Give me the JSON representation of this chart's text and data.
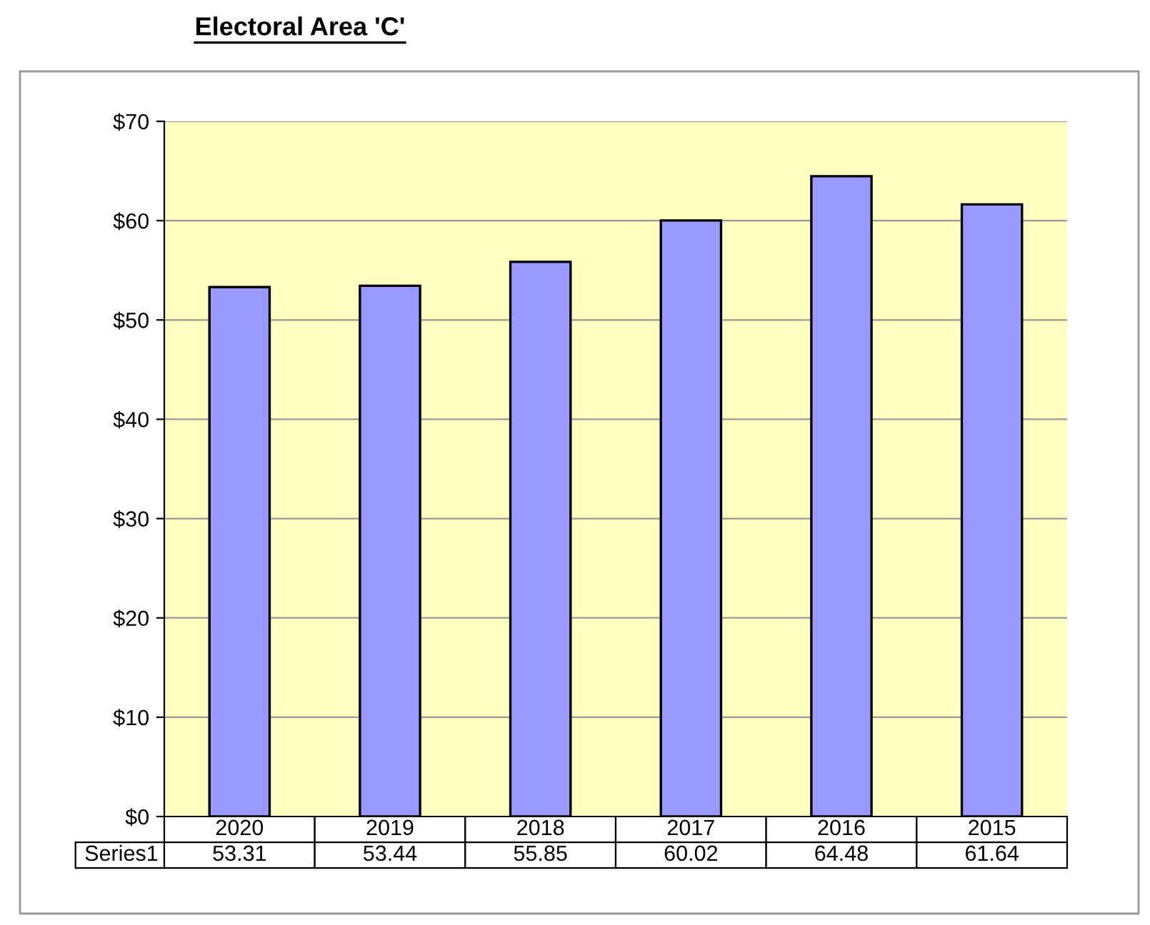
{
  "chart_data": {
    "type": "bar",
    "title": "Electoral Area 'C'",
    "categories": [
      "2020",
      "2019",
      "2018",
      "2017",
      "2016",
      "2015"
    ],
    "series": [
      {
        "name": "Series1",
        "color": "#9999ff",
        "values": [
          53.31,
          53.44,
          55.85,
          60.02,
          64.48,
          61.64
        ]
      }
    ],
    "ylim": [
      0,
      70
    ],
    "yticks": [
      {
        "value": 0,
        "label": "$0"
      },
      {
        "value": 10,
        "label": "$10"
      },
      {
        "value": 20,
        "label": "$20"
      },
      {
        "value": 30,
        "label": "$30"
      },
      {
        "value": 40,
        "label": "$40"
      },
      {
        "value": 50,
        "label": "$50"
      },
      {
        "value": 60,
        "label": "$60"
      },
      {
        "value": 70,
        "label": "$70"
      }
    ],
    "grid": "y",
    "legend": false,
    "data_labels": true
  }
}
